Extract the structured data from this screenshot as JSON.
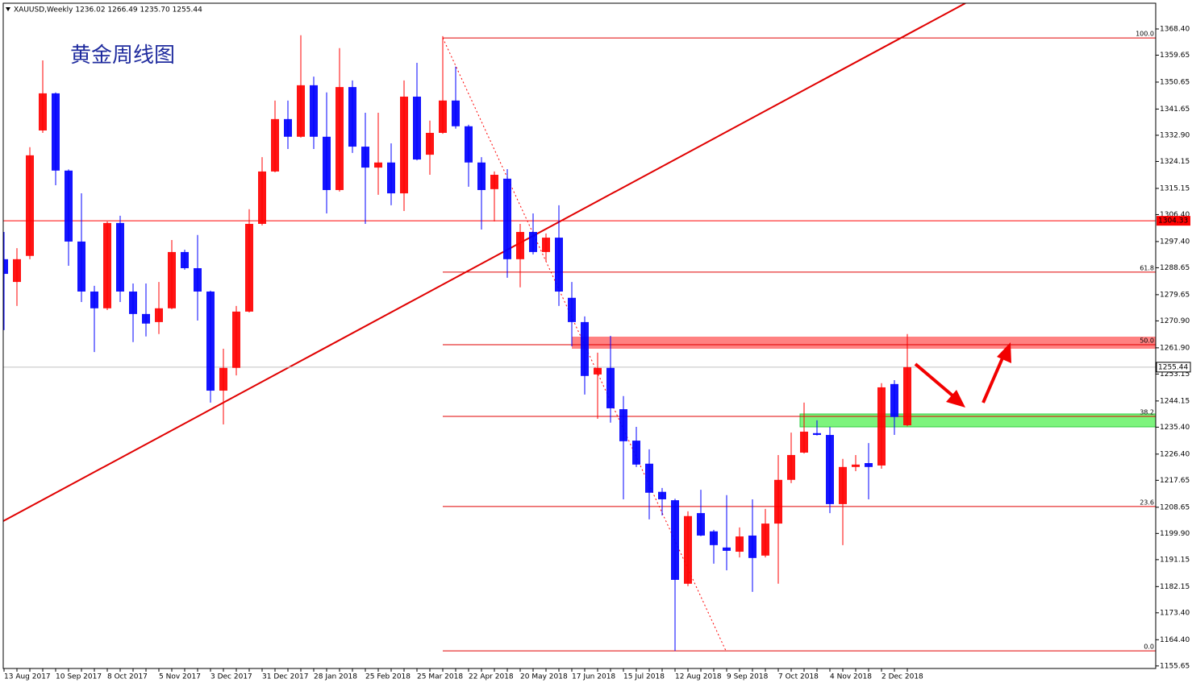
{
  "chart_data": {
    "type": "candlestick",
    "header": "XAUUSD,Weekly  1236.02 1266.49 1235.70 1255.44",
    "title": "黄金周线图",
    "categories": [
      "13 Aug 2017",
      null,
      null,
      null,
      "10 Sep 2017",
      null,
      null,
      null,
      "8 Oct 2017",
      null,
      null,
      null,
      "5 Nov 2017",
      null,
      null,
      null,
      "3 Dec 2017",
      null,
      null,
      null,
      "31 Dec 2017",
      null,
      null,
      null,
      "28 Jan 2018",
      null,
      null,
      null,
      "25 Feb 2018",
      null,
      null,
      null,
      "25 Mar 2018",
      null,
      null,
      null,
      "22 Apr 2018",
      null,
      null,
      null,
      "20 May 2018",
      null,
      null,
      null,
      "17 Jun 2018",
      null,
      null,
      null,
      "15 Jul 2018",
      null,
      null,
      null,
      "12 Aug 2018",
      null,
      null,
      null,
      "9 Sep 2018",
      null,
      null,
      null,
      "7 Oct 2018",
      null,
      null,
      null,
      "4 Nov 2018",
      null,
      null,
      null,
      "2 Dec 2018",
      null,
      null
    ],
    "open": [
      1291.5,
      1283.9,
      1292.6,
      1334.5,
      1346.9,
      1321.1,
      1297.4,
      1280.7,
      1275.1,
      1303.6,
      1280.7,
      1273.2,
      1270.5,
      1275.1,
      1293.9,
      1288.5,
      1280.7,
      1247.6,
      1255.2,
      1274.0,
      1303.3,
      1320.8,
      1338.3,
      1332.4,
      1349.6,
      1332.4,
      1314.6,
      1349.0,
      1329.1,
      1322.1,
      1323.8,
      1313.5,
      1345.8,
      1326.4,
      1333.7,
      1344.5,
      1335.9,
      1323.8,
      1314.9,
      1318.4,
      1291.5,
      1300.6,
      1293.9,
      1298.7,
      1278.6,
      1270.5,
      1253.0,
      1255.2,
      1241.4,
      1230.9,
      1223.2,
      1213.8,
      1211.0,
      1183.1,
      1206.7,
      1200.6,
      1195.2,
      1193.8,
      1199.2,
      1192.5,
      1203.2,
      1217.8,
      1226.9,
      1233.4,
      1232.8,
      1209.7,
      1222.1,
      1223.4,
      1222.6,
      1249.8,
      1236.02
    ],
    "high": [
      1300.6,
      1295.2,
      1328.9,
      1357.9,
      1347.2,
      1321.5,
      1313.5,
      1282.6,
      1304.1,
      1306.0,
      1283.4,
      1283.4,
      1283.9,
      1297.9,
      1294.7,
      1299.6,
      1281.0,
      1261.6,
      1275.9,
      1308.2,
      1325.6,
      1344.5,
      1344.5,
      1366.3,
      1352.5,
      1347.2,
      1362.0,
      1351.2,
      1340.4,
      1340.4,
      1330.2,
      1351.2,
      1357.1,
      1337.8,
      1366.0,
      1355.8,
      1336.4,
      1325.6,
      1320.8,
      1321.6,
      1303.3,
      1306.8,
      1300.1,
      1309.5,
      1283.9,
      1272.4,
      1260.3,
      1265.9,
      1245.8,
      1235.5,
      1228.0,
      1215.1,
      1211.5,
      1207.3,
      1214.5,
      1201.1,
      1212.7,
      1201.9,
      1211.3,
      1208.1,
      1226.1,
      1233.6,
      1243.6,
      1237.7,
      1235.5,
      1224.8,
      1226.1,
      1230.1,
      1250.1,
      1251.1,
      1266.49
    ],
    "low": [
      1267.8,
      1275.9,
      1291.5,
      1333.7,
      1316.2,
      1289.3,
      1277.2,
      1260.5,
      1274.5,
      1277.2,
      1263.8,
      1265.7,
      1266.5,
      1274.8,
      1288.0,
      1271.0,
      1243.6,
      1236.3,
      1252.7,
      1273.7,
      1302.8,
      1320.5,
      1328.3,
      1332.1,
      1328.3,
      1306.8,
      1314.1,
      1327.0,
      1303.3,
      1313.0,
      1309.5,
      1307.6,
      1324.5,
      1319.7,
      1333.4,
      1335.1,
      1315.7,
      1301.4,
      1304.1,
      1285.3,
      1282.1,
      1293.1,
      1290.7,
      1275.9,
      1262.4,
      1246.3,
      1238.2,
      1236.9,
      1211.3,
      1222.1,
      1204.6,
      1205.9,
      1160.7,
      1182.3,
      1199.0,
      1189.8,
      1187.6,
      1191.9,
      1180.4,
      1191.9,
      1183.1,
      1216.7,
      1226.6,
      1232.6,
      1206.7,
      1196.0,
      1220.7,
      1211.3,
      1221.5,
      1232.8,
      1235.7
    ],
    "close": [
      1286.6,
      1291.5,
      1326.2,
      1346.9,
      1321.1,
      1297.4,
      1280.7,
      1275.1,
      1303.6,
      1280.7,
      1273.2,
      1270.0,
      1275.1,
      1293.9,
      1288.5,
      1280.7,
      1247.6,
      1255.2,
      1274.0,
      1303.3,
      1320.8,
      1338.3,
      1332.4,
      1349.6,
      1332.4,
      1314.6,
      1349.0,
      1329.1,
      1322.1,
      1323.8,
      1313.5,
      1345.8,
      1324.8,
      1333.7,
      1344.5,
      1335.9,
      1323.8,
      1314.6,
      1319.7,
      1291.5,
      1300.6,
      1293.9,
      1298.7,
      1280.7,
      1270.5,
      1252.5,
      1255.2,
      1241.7,
      1230.7,
      1222.9,
      1213.5,
      1211.3,
      1184.4,
      1205.7,
      1199.2,
      1196.0,
      1194.1,
      1198.9,
      1191.7,
      1203.2,
      1217.8,
      1226.1,
      1233.9,
      1232.8,
      1209.7,
      1222.1,
      1222.9,
      1222.1,
      1248.7,
      1238.8,
      1255.44
    ],
    "up_color": "#ff0000",
    "down_color": "#0000ff",
    "ylim": [
      1154.8,
      1377.0
    ],
    "yticks": [
      {
        "value": 1368.4,
        "label": "1368.40"
      },
      1359.65,
      1350.65,
      1341.65,
      {
        "value": 1332.9,
        "label": "1332.90"
      },
      1324.15,
      1315.15,
      {
        "value": 1306.4,
        "label": "1306.40"
      },
      {
        "value": 1297.4,
        "label": "1297.40"
      },
      1288.65,
      1279.65,
      {
        "value": 1270.9,
        "label": "1270.90"
      },
      {
        "value": 1261.9,
        "label": "1261.90"
      },
      1253.15,
      1244.15,
      {
        "value": 1235.4,
        "label": "1235.40"
      },
      {
        "value": 1226.4,
        "label": "1226.40"
      },
      1217.65,
      1208.65,
      {
        "value": 1199.9,
        "label": "1199.90"
      },
      1191.15,
      1182.15,
      {
        "value": 1173.4,
        "label": "1173.40"
      },
      {
        "value": 1164.4,
        "label": "1164.40"
      },
      1155.65
    ],
    "grid": false,
    "level_line": {
      "value": 1304.33,
      "color": "#ff0000"
    },
    "fibo": [
      {
        "label": "100.0",
        "value": 1365.4
      },
      {
        "label": "61.8",
        "value": 1287.2
      },
      {
        "label": "50.0",
        "value": 1262.95
      },
      {
        "label": "38.2",
        "value": 1239.0
      },
      {
        "label": "23.6",
        "value": 1208.9
      },
      {
        "label": "0.0",
        "value": 1160.7
      }
    ]
  }
}
